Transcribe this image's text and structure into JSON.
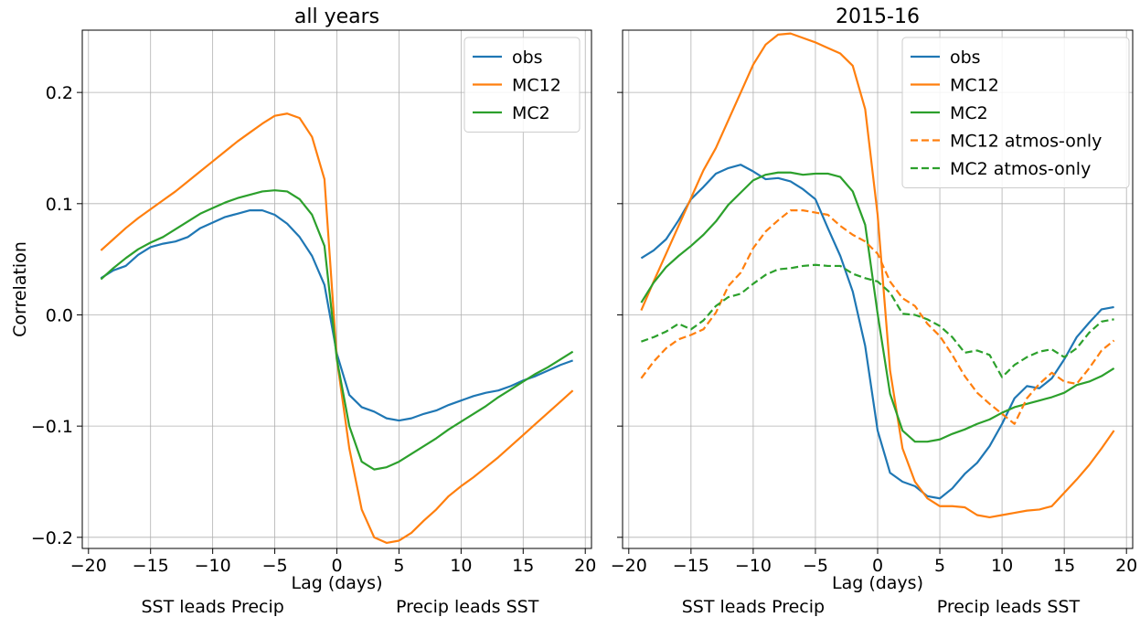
{
  "chart_data": [
    {
      "type": "line",
      "title": "all years",
      "xlabel": "Lag (days)",
      "ylabel": "Correlation",
      "xlim": [
        -20.5,
        20.5
      ],
      "ylim": [
        -0.21,
        0.256
      ],
      "xticks": [
        -20,
        -15,
        -10,
        -5,
        0,
        5,
        10,
        15,
        20
      ],
      "xtick_labels": [
        "−20",
        "−15",
        "−10",
        "−5",
        "0",
        "5",
        "10",
        "15",
        "20"
      ],
      "yticks": [
        -0.2,
        -0.1,
        0.0,
        0.1,
        0.2
      ],
      "ytick_labels": [
        "−0.2",
        "−0.1",
        "0.0",
        "0.1",
        "0.2"
      ],
      "grid": true,
      "legend_position": "top-right",
      "annotations": {
        "left": "SST leads Precip",
        "right": "Precip leads SST"
      },
      "x": [
        -19,
        -18,
        -17,
        -16,
        -15,
        -14,
        -13,
        -12,
        -11,
        -10,
        -9,
        -8,
        -7,
        -6,
        -5,
        -4,
        -3,
        -2,
        -1,
        0,
        1,
        2,
        3,
        4,
        5,
        6,
        7,
        8,
        9,
        10,
        11,
        12,
        13,
        14,
        15,
        16,
        17,
        18,
        19
      ],
      "series": [
        {
          "name": "obs",
          "color": "#1f77b4",
          "dashed": false,
          "values": [
            0.033,
            0.04,
            0.044,
            0.054,
            0.061,
            0.064,
            0.066,
            0.07,
            0.078,
            0.083,
            0.088,
            0.091,
            0.094,
            0.094,
            0.09,
            0.082,
            0.07,
            0.053,
            0.027,
            -0.035,
            -0.072,
            -0.083,
            -0.087,
            -0.093,
            -0.095,
            -0.093,
            -0.089,
            -0.086,
            -0.081,
            -0.077,
            -0.073,
            -0.07,
            -0.068,
            -0.064,
            -0.059,
            -0.055,
            -0.05,
            -0.045,
            -0.041
          ]
        },
        {
          "name": "MC12",
          "color": "#ff7f0e",
          "dashed": false,
          "values": [
            0.058,
            0.068,
            0.078,
            0.087,
            0.095,
            0.103,
            0.111,
            0.12,
            0.129,
            0.138,
            0.147,
            0.156,
            0.164,
            0.172,
            0.179,
            0.181,
            0.177,
            0.16,
            0.122,
            -0.04,
            -0.12,
            -0.175,
            -0.2,
            -0.205,
            -0.203,
            -0.196,
            -0.185,
            -0.175,
            -0.163,
            -0.154,
            -0.146,
            -0.137,
            -0.128,
            -0.118,
            -0.108,
            -0.098,
            -0.088,
            -0.078,
            -0.068
          ]
        },
        {
          "name": "MC2",
          "color": "#2ca02c",
          "dashed": false,
          "values": [
            0.032,
            0.042,
            0.051,
            0.059,
            0.065,
            0.07,
            0.077,
            0.084,
            0.091,
            0.096,
            0.101,
            0.105,
            0.108,
            0.111,
            0.112,
            0.111,
            0.104,
            0.09,
            0.062,
            -0.04,
            -0.1,
            -0.132,
            -0.139,
            -0.137,
            -0.132,
            -0.125,
            -0.118,
            -0.111,
            -0.103,
            -0.096,
            -0.089,
            -0.082,
            -0.074,
            -0.067,
            -0.06,
            -0.053,
            -0.047,
            -0.04,
            -0.033
          ]
        }
      ]
    },
    {
      "type": "line",
      "title": "2015-16",
      "xlabel": "Lag (days)",
      "ylabel": "",
      "xlim": [
        -20.5,
        20.5
      ],
      "ylim": [
        -0.21,
        0.256
      ],
      "xticks": [
        -20,
        -15,
        -10,
        -5,
        0,
        5,
        10,
        15,
        20
      ],
      "xtick_labels": [
        "−20",
        "−15",
        "−10",
        "−5",
        "0",
        "5",
        "10",
        "15",
        "20"
      ],
      "yticks": [
        -0.2,
        -0.1,
        0.0,
        0.1,
        0.2
      ],
      "grid": true,
      "legend_position": "top-right",
      "annotations": {
        "left": "SST leads Precip",
        "right": "Precip leads SST"
      },
      "x": [
        -19,
        -18,
        -17,
        -16,
        -15,
        -14,
        -13,
        -12,
        -11,
        -10,
        -9,
        -8,
        -7,
        -6,
        -5,
        -4,
        -3,
        -2,
        -1,
        0,
        1,
        2,
        3,
        4,
        5,
        6,
        7,
        8,
        9,
        10,
        11,
        12,
        13,
        14,
        15,
        16,
        17,
        18,
        19
      ],
      "series": [
        {
          "name": "obs",
          "color": "#1f77b4",
          "dashed": false,
          "values": [
            0.051,
            0.058,
            0.068,
            0.085,
            0.104,
            0.115,
            0.127,
            0.132,
            0.135,
            0.129,
            0.122,
            0.123,
            0.12,
            0.113,
            0.104,
            0.078,
            0.053,
            0.021,
            -0.028,
            -0.104,
            -0.142,
            -0.15,
            -0.154,
            -0.163,
            -0.165,
            -0.156,
            -0.143,
            -0.133,
            -0.118,
            -0.098,
            -0.075,
            -0.064,
            -0.066,
            -0.057,
            -0.04,
            -0.02,
            -0.007,
            0.005,
            0.007
          ]
        },
        {
          "name": "MC12",
          "color": "#ff7f0e",
          "dashed": false,
          "values": [
            0.004,
            0.03,
            0.055,
            0.08,
            0.105,
            0.13,
            0.15,
            0.175,
            0.2,
            0.225,
            0.243,
            0.252,
            0.253,
            0.249,
            0.245,
            0.24,
            0.235,
            0.224,
            0.185,
            0.09,
            -0.05,
            -0.12,
            -0.15,
            -0.165,
            -0.172,
            -0.172,
            -0.173,
            -0.18,
            -0.182,
            -0.18,
            -0.178,
            -0.176,
            -0.175,
            -0.172,
            -0.16,
            -0.148,
            -0.135,
            -0.12,
            -0.104
          ]
        },
        {
          "name": "MC2",
          "color": "#2ca02c",
          "dashed": false,
          "values": [
            0.011,
            0.029,
            0.043,
            0.053,
            0.062,
            0.072,
            0.084,
            0.099,
            0.11,
            0.121,
            0.126,
            0.128,
            0.128,
            0.126,
            0.127,
            0.127,
            0.124,
            0.111,
            0.081,
            0.001,
            -0.071,
            -0.104,
            -0.114,
            -0.114,
            -0.112,
            -0.107,
            -0.103,
            -0.098,
            -0.094,
            -0.088,
            -0.083,
            -0.08,
            -0.077,
            -0.074,
            -0.07,
            -0.063,
            -0.06,
            -0.055,
            -0.048
          ]
        },
        {
          "name": "MC12 atmos-only",
          "color": "#ff7f0e",
          "dashed": true,
          "values": [
            -0.057,
            -0.042,
            -0.03,
            -0.022,
            -0.018,
            -0.013,
            0.002,
            0.026,
            0.038,
            0.06,
            0.075,
            0.085,
            0.094,
            0.094,
            0.092,
            0.09,
            0.08,
            0.072,
            0.066,
            0.055,
            0.03,
            0.015,
            0.008,
            -0.008,
            -0.019,
            -0.036,
            -0.055,
            -0.07,
            -0.08,
            -0.089,
            -0.098,
            -0.075,
            -0.062,
            -0.052,
            -0.06,
            -0.062,
            -0.048,
            -0.032,
            -0.023
          ]
        },
        {
          "name": "MC2 atmos-only",
          "color": "#2ca02c",
          "dashed": true,
          "values": [
            -0.024,
            -0.02,
            -0.015,
            -0.008,
            -0.013,
            -0.005,
            0.008,
            0.016,
            0.019,
            0.028,
            0.036,
            0.041,
            0.042,
            0.044,
            0.045,
            0.044,
            0.044,
            0.037,
            0.033,
            0.03,
            0.02,
            0.001,
            0.0,
            -0.004,
            -0.01,
            -0.02,
            -0.034,
            -0.032,
            -0.036,
            -0.056,
            -0.045,
            -0.038,
            -0.033,
            -0.031,
            -0.038,
            -0.03,
            -0.016,
            -0.006,
            -0.004
          ]
        }
      ]
    }
  ]
}
